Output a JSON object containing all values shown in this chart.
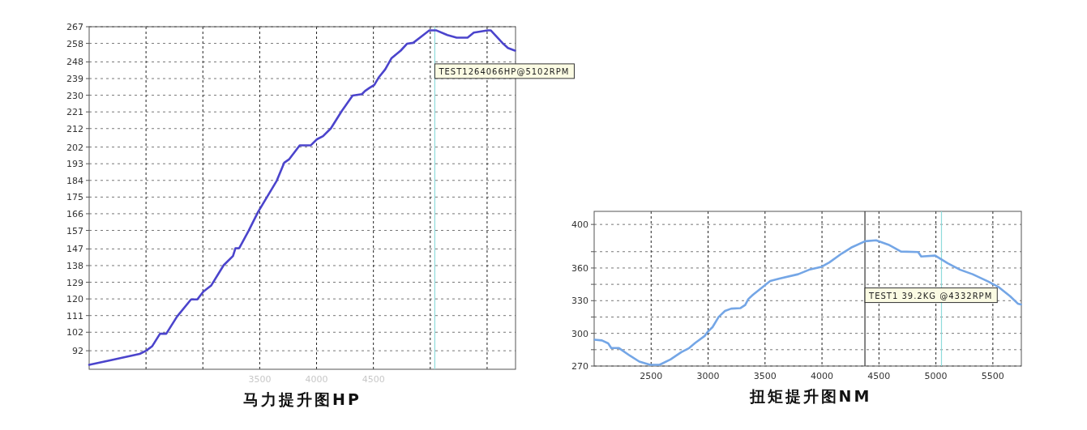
{
  "chart_data": [
    {
      "type": "line",
      "title": "马力提升图HP",
      "color": "#4b44cc",
      "x": [
        2000,
        2200,
        2445,
        2500,
        2555,
        2623,
        2678,
        2773,
        2896,
        2951,
        3005,
        3074,
        3183,
        3265,
        3287,
        3320,
        3402,
        3484,
        3566,
        3648,
        3716,
        3757,
        3852,
        3948,
        4003,
        4057,
        4126,
        4221,
        4317,
        4399,
        4426,
        4467,
        4508,
        4549,
        4604,
        4658,
        4740,
        4795,
        4850,
        4932,
        4992,
        5055,
        5150,
        5232,
        5328,
        5383,
        5505,
        5533,
        5601,
        5642,
        5683,
        5745
      ],
      "values": [
        84.4,
        87,
        90.3,
        92,
        94.5,
        101.2,
        101.2,
        110.5,
        119.7,
        119.7,
        124,
        127.3,
        138.2,
        143.2,
        147.4,
        147.4,
        156.7,
        166.8,
        175.2,
        183.6,
        193.6,
        195.3,
        202.9,
        202.9,
        206.2,
        207.9,
        212.1,
        221.4,
        229.8,
        230.6,
        232.3,
        234,
        235.6,
        239.8,
        244,
        249.9,
        254.1,
        257.8,
        258.3,
        262.2,
        265,
        265,
        262.5,
        261.1,
        261.1,
        263.8,
        265,
        265,
        260.5,
        257.8,
        255.5,
        254.1
      ],
      "xlim": [
        2000,
        5750
      ],
      "ylim": [
        82,
        267
      ],
      "xticks": [
        {
          "value": 2500,
          "label": null
        },
        {
          "value": 3000,
          "label": null
        },
        3500,
        4000,
        4500,
        {
          "value": 5000,
          "label": null
        },
        {
          "value": 5500,
          "label": null
        }
      ],
      "yticks": [
        92,
        102,
        111,
        120,
        129,
        138,
        147,
        157,
        166,
        175,
        184,
        193,
        202,
        212,
        221,
        230,
        239,
        248,
        258,
        267
      ],
      "grid": true,
      "ref_lines": [
        {
          "axis": "x",
          "value": 5040,
          "color": "#8fdcdc",
          "line_style": "solid"
        }
      ],
      "annotations": [
        {
          "text": "TEST1264066HP@5102RPM",
          "x": 5040,
          "y": 243
        }
      ]
    },
    {
      "type": "line",
      "title": "扭矩提升图NM",
      "color": "#74a6e6",
      "x": [
        2005,
        2068,
        2123,
        2150,
        2218,
        2314,
        2396,
        2492,
        2574,
        2670,
        2765,
        2834,
        2889,
        2970,
        2998,
        3039,
        3093,
        3148,
        3203,
        3285,
        3326,
        3353,
        3394,
        3490,
        3545,
        3627,
        3791,
        3887,
        3996,
        4064,
        4174,
        4256,
        4379,
        4475,
        4584,
        4693,
        4844,
        4871,
        4994,
        5104,
        5213,
        5322,
        5459,
        5555,
        5651,
        5719,
        5747
      ],
      "values": [
        294.1,
        293.5,
        290.8,
        286.5,
        286.5,
        279.5,
        274.1,
        271.1,
        271.1,
        276,
        282.7,
        286.5,
        291.4,
        297.6,
        301.6,
        305.7,
        315.1,
        320.5,
        322.7,
        323.2,
        326,
        331.4,
        335.4,
        343.5,
        348.1,
        350.3,
        354.3,
        358.4,
        361.1,
        365.1,
        373.3,
        378.7,
        384.6,
        385.4,
        381.4,
        375.1,
        374.6,
        370.6,
        371.4,
        364.3,
        358.4,
        354.3,
        347.6,
        342.2,
        334.1,
        327.3,
        326.5
      ],
      "xlim": [
        2000,
        5750
      ],
      "ylim": [
        270,
        412
      ],
      "xticks": [
        2500,
        3000,
        3500,
        4000,
        4500,
        5000,
        5500
      ],
      "yticks": [
        270,
        {
          "value": 285,
          "label": null
        },
        300,
        {
          "value": 315,
          "label": null
        },
        330,
        {
          "value": 345,
          "label": null
        },
        360,
        {
          "value": 375,
          "label": null
        },
        400
      ],
      "grid": true,
      "ref_lines": [
        {
          "axis": "x",
          "value": 4377,
          "color": "#333333",
          "line_style": "solid"
        },
        {
          "axis": "x",
          "value": 5049,
          "color": "#8fdcdc",
          "line_style": "solid"
        }
      ],
      "annotations": [
        {
          "text": "TEST1 39.2KG @4332RPM",
          "x": 4377,
          "y": 335
        }
      ]
    }
  ]
}
